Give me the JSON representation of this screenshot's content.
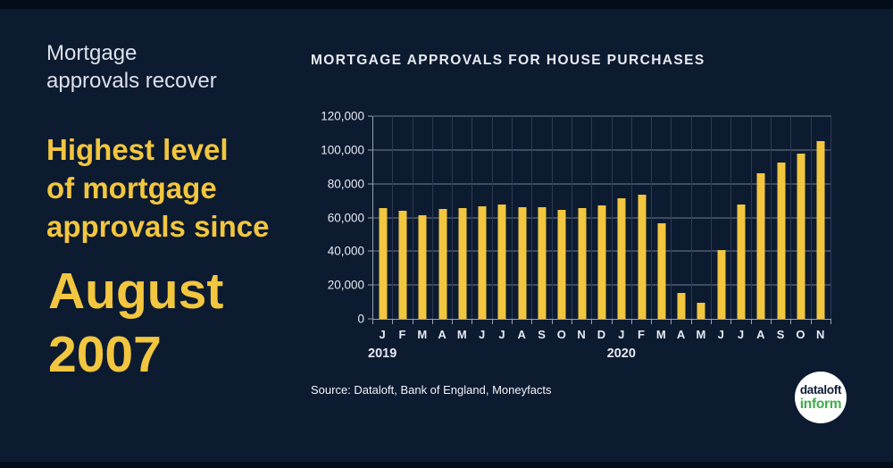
{
  "colors": {
    "background": "#0D1B31",
    "strip": "#030C19",
    "accent_yellow": "#F2C63E",
    "kicker_white": "#DCE1EA",
    "title_white": "#E8EBF1",
    "grid_h": "#737B8D",
    "grid_v": "#2E3A55",
    "axis": "#9BA1AF",
    "label_white": "#E6E9F0",
    "logo_green": "#3EAD49"
  },
  "left_panel": {
    "kicker_lines": [
      "Mortgage",
      "approvals recover"
    ],
    "headline_lines": [
      "Highest level",
      "of mortgage",
      "approvals since"
    ],
    "highlight_lines": [
      "August",
      "2007"
    ]
  },
  "chart_data": {
    "type": "bar",
    "title": "MORTGAGE APPROVALS FOR HOUSE PURCHASES",
    "x": [
      "J",
      "F",
      "M",
      "A",
      "M",
      "J",
      "J",
      "A",
      "S",
      "O",
      "N",
      "D",
      "J",
      "F",
      "M",
      "A",
      "M",
      "J",
      "J",
      "A",
      "S",
      "O",
      "N"
    ],
    "year_labels": [
      {
        "text": "2019",
        "month_index": 0
      },
      {
        "text": "2020",
        "month_index": 12
      }
    ],
    "values": [
      65500,
      64000,
      61500,
      65000,
      65500,
      66500,
      67500,
      66000,
      66000,
      64500,
      65500,
      67000,
      71500,
      73500,
      56500,
      15500,
      9500,
      40500,
      67500,
      86000,
      92500,
      98000,
      105000
    ],
    "ylim": [
      0,
      120000
    ],
    "y_ticks": [
      0,
      20000,
      40000,
      60000,
      80000,
      100000,
      120000
    ],
    "y_tick_labels": [
      "0",
      "20,000",
      "40,000",
      "60,000",
      "80,000",
      "100,000",
      "120,000"
    ],
    "bar_color": "#F2C63E",
    "grid": true,
    "legend": null
  },
  "source": "Source: Dataloft, Bank of England, Moneyfacts",
  "logo": {
    "line1": "dataloft",
    "line2": "inform"
  }
}
